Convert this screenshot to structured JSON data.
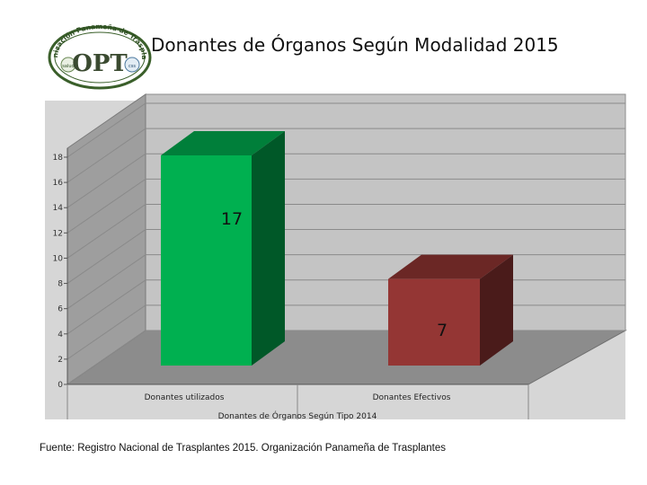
{
  "logo": {
    "org_arc_text": "Organización Panameña de Trasplantes",
    "mark": "OPT",
    "left_emblem": "salud",
    "right_emblem": "css"
  },
  "header": {
    "title": "Donantes de Órganos Según Modalidad 2015"
  },
  "chart_data": {
    "type": "bar",
    "categories": [
      "Donantes utilizados",
      "Donantes Efectivos"
    ],
    "values": [
      17,
      7
    ],
    "data_labels": [
      "17",
      "7"
    ],
    "title": "Donantes de Órganos Según Modalidad 2015",
    "xlabel": "Donantes de Órganos Según Tipo 2014",
    "ylabel": "",
    "ylim": [
      0,
      18
    ],
    "yticks": [
      0,
      2,
      4,
      6,
      8,
      10,
      12,
      14,
      16,
      18
    ],
    "grid": true,
    "legend": "none",
    "style": "3d",
    "colors": {
      "bar_1": "#00b050",
      "bar_2": "#943634",
      "wall": "#c0c0c0",
      "floor": "#8c8c8c"
    }
  },
  "footer": {
    "source": "Fuente: Registro Nacional de Trasplantes 2015.  Organización Panameña de Trasplantes"
  }
}
